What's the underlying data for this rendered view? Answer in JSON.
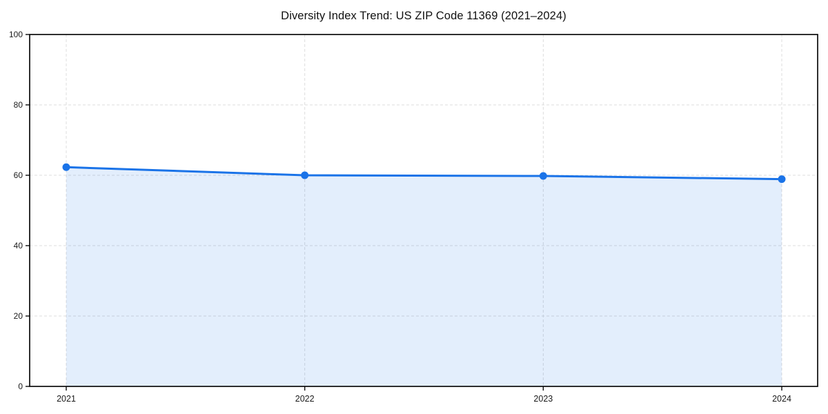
{
  "page": {
    "background_color": "#ffffff"
  },
  "chart_data": {
    "type": "area",
    "title": "Diversity Index Trend: US ZIP Code 11369 (2021–2024)",
    "x": [
      2021,
      2022,
      2023,
      2024
    ],
    "xtick_labels": [
      "2021",
      "2022",
      "2023",
      "2024"
    ],
    "series": [
      {
        "name": "Diversity Index",
        "values": [
          62.3,
          60.0,
          59.8,
          58.9
        ]
      }
    ],
    "xlabel": "",
    "ylabel": "",
    "ylim": [
      0,
      100
    ],
    "yticks": [
      0,
      20,
      40,
      60,
      80,
      100
    ],
    "grid": "dashed gridlines on both axes",
    "legend": "none",
    "marker": "filled circle on each data point",
    "area_fill": "light translucent blue from line down to y=0, spanning 2021 to 2024 only",
    "colors": {
      "line": "#1a73e8",
      "marker": "#1a73e8",
      "fill": "rgba(26,115,232,0.12)",
      "grid": "#dcdcdc",
      "spine": "#0a0a0a",
      "tick_label": "#1a1a1a",
      "title": "#111111",
      "background": "#ffffff"
    }
  }
}
